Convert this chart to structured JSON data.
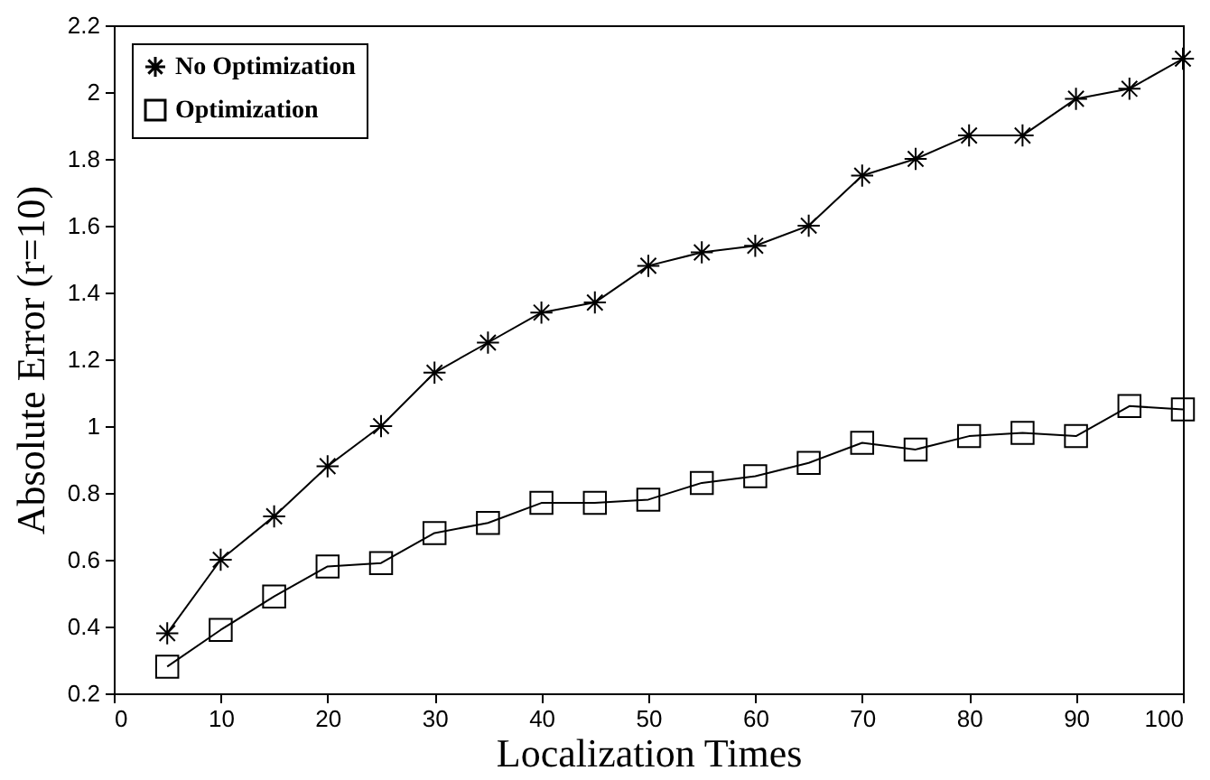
{
  "chart_data": {
    "type": "line",
    "xlabel": "Localization Times",
    "ylabel": "Absolute Error (r=10)",
    "x": [
      5,
      10,
      15,
      20,
      25,
      30,
      35,
      40,
      45,
      50,
      55,
      60,
      65,
      70,
      75,
      80,
      85,
      90,
      95,
      100
    ],
    "series": [
      {
        "name": "No Optimization",
        "color": "#000000",
        "marker": "cross",
        "values": [
          0.38,
          0.6,
          0.73,
          0.88,
          1.0,
          1.16,
          1.25,
          1.34,
          1.37,
          1.48,
          1.52,
          1.54,
          1.6,
          1.75,
          1.8,
          1.87,
          1.87,
          1.98,
          2.01,
          2.1
        ]
      },
      {
        "name": "Optimization",
        "color": "#000000",
        "marker": "square",
        "values": [
          0.28,
          0.39,
          0.49,
          0.58,
          0.59,
          0.68,
          0.71,
          0.77,
          0.77,
          0.78,
          0.83,
          0.85,
          0.89,
          0.95,
          0.93,
          0.97,
          0.98,
          0.97,
          1.06,
          1.05
        ]
      }
    ],
    "xlim": [
      0,
      100
    ],
    "xticks": [
      0,
      10,
      20,
      30,
      40,
      50,
      60,
      70,
      80,
      90,
      100
    ],
    "ylim": [
      0.2,
      2.2
    ],
    "yticks": [
      0.2,
      0.4,
      0.6,
      0.8,
      1,
      1.2,
      1.4,
      1.6,
      1.8,
      2,
      2.2
    ],
    "grid": false,
    "legend": "top left",
    "line_style": "solid"
  }
}
